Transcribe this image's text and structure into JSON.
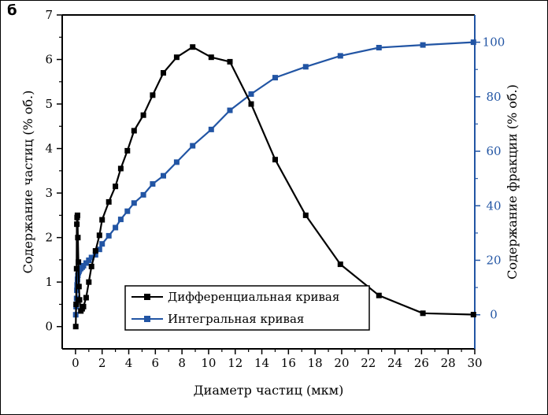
{
  "chart_data": {
    "type": "line",
    "panel_label": "б",
    "xlabel": "Диаметр частиц (мкм)",
    "ylabel_left": "Содержание частиц (% об.)",
    "ylabel_right": "Содержание фракции (% об.)",
    "xlim": [
      -1,
      30
    ],
    "ylim_left": [
      -0.5,
      7
    ],
    "ylim_right": [
      -12.5,
      110
    ],
    "x_ticks": [
      0,
      2,
      4,
      6,
      8,
      10,
      12,
      14,
      16,
      18,
      20,
      22,
      24,
      26,
      28,
      30
    ],
    "y_left_ticks": [
      0,
      1,
      2,
      3,
      4,
      5,
      6,
      7
    ],
    "y_right_ticks": [
      0,
      20,
      40,
      60,
      80,
      100
    ],
    "colors": {
      "differential": "#000000",
      "integral": "#2255a4"
    },
    "series": [
      {
        "name": "Дифференциальная кривая",
        "axis": "left",
        "x": [
          0.02,
          0.05,
          0.08,
          0.1,
          0.12,
          0.15,
          0.18,
          0.22,
          0.26,
          0.3,
          0.4,
          0.5,
          0.6,
          0.8,
          1.0,
          1.2,
          1.5,
          1.8,
          2.0,
          2.5,
          3.0,
          3.4,
          3.9,
          4.4,
          5.1,
          5.8,
          6.6,
          7.6,
          8.8,
          10.2,
          11.6,
          13.2,
          15.0,
          17.3,
          19.9,
          22.8,
          26.1,
          29.9
        ],
        "values": [
          0.0,
          0.5,
          1.3,
          2.3,
          2.45,
          2.5,
          2.0,
          1.45,
          0.9,
          0.6,
          0.35,
          0.4,
          0.45,
          0.65,
          1.0,
          1.35,
          1.7,
          2.05,
          2.4,
          2.8,
          3.15,
          3.55,
          3.95,
          4.4,
          4.75,
          5.2,
          5.7,
          6.05,
          6.28,
          6.05,
          5.95,
          5.0,
          3.75,
          2.5,
          1.4,
          0.7,
          0.3,
          0.27
        ]
      },
      {
        "name": "Интегральная кривая",
        "axis": "right",
        "x": [
          0.02,
          0.05,
          0.08,
          0.1,
          0.12,
          0.15,
          0.18,
          0.22,
          0.26,
          0.3,
          0.4,
          0.5,
          0.6,
          0.8,
          1.0,
          1.2,
          1.5,
          1.8,
          2.0,
          2.5,
          3.0,
          3.4,
          3.9,
          4.4,
          5.1,
          5.8,
          6.6,
          7.6,
          8.8,
          10.2,
          11.6,
          13.2,
          15.0,
          17.3,
          19.9,
          22.8,
          26.1,
          29.9
        ],
        "values": [
          0,
          3,
          6,
          9,
          11,
          13,
          14.5,
          15.5,
          16,
          16.5,
          17,
          17.5,
          18,
          19,
          20,
          21,
          22,
          24,
          26,
          29,
          32,
          35,
          38,
          41,
          44,
          48,
          51,
          56,
          62,
          68,
          75,
          81,
          87,
          91,
          95,
          98,
          99,
          100
        ]
      }
    ]
  }
}
